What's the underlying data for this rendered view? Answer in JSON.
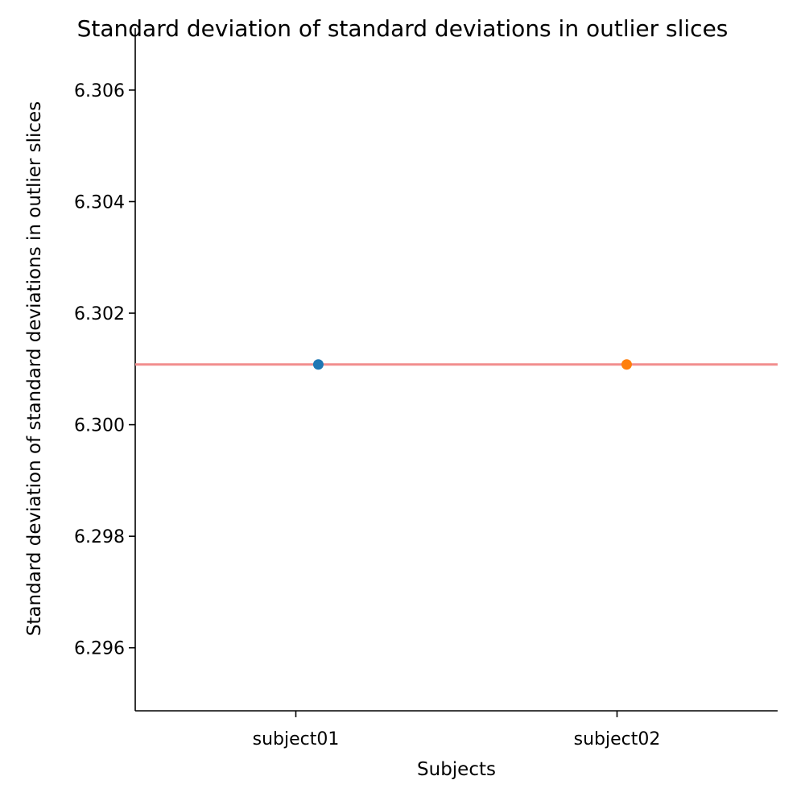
{
  "chart_data": {
    "type": "scatter",
    "title": "Standard deviation of standard deviations in outlier slices",
    "xlabel": "Subjects",
    "ylabel": "Standard deviation of standard deviations in outlier slices",
    "categories": [
      "subject01",
      "subject02"
    ],
    "points": [
      {
        "category": "subject01",
        "x_offset": 0.07,
        "y": 6.30108,
        "color": "#1f77b4"
      },
      {
        "category": "subject02",
        "x_offset": 0.03,
        "y": 6.30108,
        "color": "#ff7f0e"
      }
    ],
    "reference_line": {
      "y": 6.30108,
      "color": "#f28e8e"
    },
    "xlim": [
      -0.5,
      1.5
    ],
    "ylim": [
      6.29487,
      6.30711
    ],
    "yticks": [
      "6.296",
      "6.298",
      "6.300",
      "6.302",
      "6.304",
      "6.306"
    ],
    "grid": false
  }
}
